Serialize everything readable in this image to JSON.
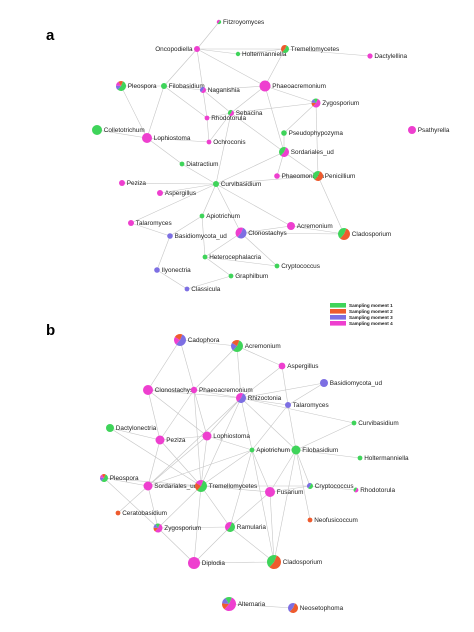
{
  "colors": {
    "m1": "#3fd45a",
    "m2": "#ee5b2e",
    "m3": "#7d6fe3",
    "m4": "#ee3fcf"
  },
  "legend": [
    {
      "key": "m1",
      "label": "Sampling moment 1"
    },
    {
      "key": "m2",
      "label": "Sampling moment 2"
    },
    {
      "key": "m3",
      "label": "Sampling moment 3"
    },
    {
      "key": "m4",
      "label": "Sampling moment 4"
    }
  ],
  "panels": [
    {
      "id": "a",
      "label": "a",
      "nodes": [
        {
          "id": "fitz",
          "label": "Fitzroyomyces",
          "mix": [
            "m1",
            "m4"
          ]
        },
        {
          "id": "onco",
          "label": "Oncopodiella",
          "mix": [
            "m4"
          ]
        },
        {
          "id": "holt",
          "label": "Holtermanniella",
          "mix": [
            "m1"
          ]
        },
        {
          "id": "trem",
          "label": "Tremellomycetes",
          "mix": [
            "m1",
            "m2"
          ]
        },
        {
          "id": "dact",
          "label": "Dactylellina",
          "mix": [
            "m4"
          ]
        },
        {
          "id": "pleo",
          "label": "Pleospora",
          "mix": [
            "m1",
            "m3",
            "m4",
            "m2"
          ]
        },
        {
          "id": "filo",
          "label": "Filobasidium",
          "mix": [
            "m1"
          ]
        },
        {
          "id": "naga",
          "label": "Naganishia",
          "mix": [
            "m4",
            "m3"
          ]
        },
        {
          "id": "phae",
          "label": "Phaeoacremonium",
          "mix": [
            "m4"
          ]
        },
        {
          "id": "zygo",
          "label": "Zygosporium",
          "mix": [
            "m4",
            "m2",
            "m3",
            "m1"
          ]
        },
        {
          "id": "rhod",
          "label": "Rhodotorula",
          "mix": [
            "m4"
          ]
        },
        {
          "id": "seba",
          "label": "Sebacina",
          "mix": [
            "m4",
            "m1"
          ]
        },
        {
          "id": "coll",
          "label": "Colletotrichum",
          "mix": [
            "m1"
          ]
        },
        {
          "id": "loph",
          "label": "Lophiostoma",
          "mix": [
            "m4"
          ]
        },
        {
          "id": "ochr",
          "label": "Ochroconis",
          "mix": [
            "m4"
          ]
        },
        {
          "id": "pseu",
          "label": "Pseudophypozyma",
          "mix": [
            "m1"
          ]
        },
        {
          "id": "psat",
          "label": "Psathyrella",
          "mix": [
            "m4"
          ]
        },
        {
          "id": "sord",
          "label": "Sordariales_ud",
          "mix": [
            "m4",
            "m1"
          ]
        },
        {
          "id": "diat",
          "label": "Diatractium",
          "mix": [
            "m1"
          ]
        },
        {
          "id": "phaeo",
          "label": "Phaeomoniella",
          "mix": [
            "m4"
          ]
        },
        {
          "id": "peni",
          "label": "Penicillium",
          "mix": [
            "m2",
            "m1"
          ]
        },
        {
          "id": "pezi",
          "label": "Peziza",
          "mix": [
            "m4"
          ]
        },
        {
          "id": "curv",
          "label": "Curvibasidium",
          "mix": [
            "m1"
          ]
        },
        {
          "id": "aspe",
          "label": "Aspergillus",
          "mix": [
            "m4"
          ]
        },
        {
          "id": "apio",
          "label": "Apiotrichum",
          "mix": [
            "m1"
          ]
        },
        {
          "id": "tala",
          "label": "Talaromyces",
          "mix": [
            "m4"
          ]
        },
        {
          "id": "clon",
          "label": "Clonostachys",
          "mix": [
            "m3",
            "m4"
          ]
        },
        {
          "id": "acre",
          "label": "Acremonium",
          "mix": [
            "m4"
          ]
        },
        {
          "id": "clad",
          "label": "Cladosporium",
          "mix": [
            "m2",
            "m1"
          ]
        },
        {
          "id": "basi",
          "label": "Basidiomycota_ud",
          "mix": [
            "m3"
          ]
        },
        {
          "id": "hete",
          "label": "Heterocephalacria",
          "mix": [
            "m1"
          ]
        },
        {
          "id": "ilyo",
          "label": "Ilyonectria",
          "mix": [
            "m3"
          ]
        },
        {
          "id": "cryp",
          "label": "Cryptococcus",
          "mix": [
            "m1"
          ]
        },
        {
          "id": "grap",
          "label": "Graphilbum",
          "mix": [
            "m1"
          ]
        },
        {
          "id": "clas",
          "label": "Classicula",
          "mix": [
            "m3"
          ]
        }
      ],
      "edges": [
        [
          "fitz",
          "onco"
        ],
        [
          "onco",
          "holt"
        ],
        [
          "onco",
          "trem"
        ],
        [
          "holt",
          "trem"
        ],
        [
          "onco",
          "naga"
        ],
        [
          "onco",
          "filo"
        ],
        [
          "onco",
          "phae"
        ],
        [
          "filo",
          "naga"
        ],
        [
          "filo",
          "pleo"
        ],
        [
          "filo",
          "rhod"
        ],
        [
          "filo",
          "loph"
        ],
        [
          "naga",
          "rhod"
        ],
        [
          "naga",
          "seba"
        ],
        [
          "naga",
          "phae"
        ],
        [
          "phae",
          "seba"
        ],
        [
          "phae",
          "zygo"
        ],
        [
          "trem",
          "phae"
        ],
        [
          "trem",
          "dact"
        ],
        [
          "zygo",
          "pseu"
        ],
        [
          "zygo",
          "seba"
        ],
        [
          "seba",
          "rhod"
        ],
        [
          "seba",
          "ochr"
        ],
        [
          "seba",
          "sord"
        ],
        [
          "rhod",
          "ochr"
        ],
        [
          "loph",
          "ochr"
        ],
        [
          "loph",
          "coll"
        ],
        [
          "loph",
          "diat"
        ],
        [
          "pseu",
          "sord"
        ],
        [
          "sord",
          "phaeo"
        ],
        [
          "sord",
          "curv"
        ],
        [
          "sord",
          "peni"
        ],
        [
          "diat",
          "curv"
        ],
        [
          "curv",
          "aspe"
        ],
        [
          "curv",
          "pezi"
        ],
        [
          "curv",
          "apio"
        ],
        [
          "curv",
          "peni"
        ],
        [
          "curv",
          "clon"
        ],
        [
          "curv",
          "acre"
        ],
        [
          "curv",
          "tala"
        ],
        [
          "phaeo",
          "peni"
        ],
        [
          "peni",
          "clad"
        ],
        [
          "acre",
          "clad"
        ],
        [
          "clon",
          "acre"
        ],
        [
          "clon",
          "clad"
        ],
        [
          "apio",
          "basi"
        ],
        [
          "apio",
          "hete"
        ],
        [
          "basi",
          "tala"
        ],
        [
          "basi",
          "ilyo"
        ],
        [
          "hete",
          "cryp"
        ],
        [
          "hete",
          "grap"
        ],
        [
          "ilyo",
          "clas"
        ],
        [
          "grap",
          "clas"
        ],
        [
          "clon",
          "hete"
        ],
        [
          "clon",
          "cryp"
        ],
        [
          "seba",
          "curv"
        ],
        [
          "phae",
          "sord"
        ],
        [
          "zygo",
          "peni"
        ],
        [
          "pleo",
          "loph"
        ]
      ]
    },
    {
      "id": "b",
      "label": "b",
      "nodes": [
        {
          "id": "cado",
          "label": "Cadophora",
          "mix": [
            "m3",
            "m4",
            "m2"
          ]
        },
        {
          "id": "acre",
          "label": "Acremonium",
          "mix": [
            "m1",
            "m3",
            "m2"
          ]
        },
        {
          "id": "aspe",
          "label": "Aspergillus",
          "mix": [
            "m4"
          ]
        },
        {
          "id": "clon",
          "label": "Clonostachys",
          "mix": [
            "m4"
          ]
        },
        {
          "id": "phae",
          "label": "Phaeoacremonium",
          "mix": [
            "m4"
          ]
        },
        {
          "id": "basi",
          "label": "Basidiomycota_ud",
          "mix": [
            "m3"
          ]
        },
        {
          "id": "rhiz",
          "label": "Rhizoctonia",
          "mix": [
            "m3",
            "m4"
          ]
        },
        {
          "id": "tala",
          "label": "Talaromyces",
          "mix": [
            "m3"
          ]
        },
        {
          "id": "dact",
          "label": "Dactylonectria",
          "mix": [
            "m1"
          ]
        },
        {
          "id": "curv",
          "label": "Curvibasidium",
          "mix": [
            "m1"
          ]
        },
        {
          "id": "peze",
          "label": "Peziza",
          "mix": [
            "m4"
          ]
        },
        {
          "id": "loph",
          "label": "Lophiostoma",
          "mix": [
            "m4"
          ]
        },
        {
          "id": "apio",
          "label": "Apiotrichum",
          "mix": [
            "m1"
          ]
        },
        {
          "id": "filo",
          "label": "Filobasidium",
          "mix": [
            "m1"
          ]
        },
        {
          "id": "holt",
          "label": "Holtermanniella",
          "mix": [
            "m1"
          ]
        },
        {
          "id": "pleo",
          "label": "Pleospora",
          "mix": [
            "m1",
            "m3",
            "m4",
            "m2"
          ]
        },
        {
          "id": "sord",
          "label": "Sordariales_ud",
          "mix": [
            "m4"
          ]
        },
        {
          "id": "trem",
          "label": "Tremellomycetes",
          "mix": [
            "m1",
            "m2",
            "m4"
          ]
        },
        {
          "id": "fusa",
          "label": "Fusarium",
          "mix": [
            "m4"
          ]
        },
        {
          "id": "cryp",
          "label": "Cryptococcus",
          "mix": [
            "m1",
            "m3"
          ]
        },
        {
          "id": "rhod",
          "label": "Rhodotorula",
          "mix": [
            "m4",
            "m1"
          ]
        },
        {
          "id": "cera",
          "label": "Ceratobasidium",
          "mix": [
            "m2"
          ]
        },
        {
          "id": "zygo",
          "label": "Zygosporium",
          "mix": [
            "m4",
            "m2",
            "m3",
            "m1"
          ]
        },
        {
          "id": "ramu",
          "label": "Ramularia",
          "mix": [
            "m1",
            "m4"
          ]
        },
        {
          "id": "neof",
          "label": "Neofusicoccum",
          "mix": [
            "m2"
          ]
        },
        {
          "id": "dipl",
          "label": "Diplodia",
          "mix": [
            "m4"
          ]
        },
        {
          "id": "clad",
          "label": "Cladosporium",
          "mix": [
            "m2",
            "m1"
          ]
        },
        {
          "id": "alte",
          "label": "Alternaria",
          "mix": [
            "m4",
            "m2",
            "m3",
            "m1"
          ]
        },
        {
          "id": "neos",
          "label": "Neosetophoma",
          "mix": [
            "m2",
            "m3"
          ]
        }
      ],
      "edges": [
        [
          "cado",
          "acre"
        ],
        [
          "cado",
          "phae"
        ],
        [
          "cado",
          "clon"
        ],
        [
          "acre",
          "rhiz"
        ],
        [
          "acre",
          "phae"
        ],
        [
          "acre",
          "aspe"
        ],
        [
          "aspe",
          "rhiz"
        ],
        [
          "aspe",
          "tala"
        ],
        [
          "clon",
          "phae"
        ],
        [
          "clon",
          "rhiz"
        ],
        [
          "clon",
          "peze"
        ],
        [
          "clon",
          "loph"
        ],
        [
          "phae",
          "rhiz"
        ],
        [
          "phae",
          "peze"
        ],
        [
          "phae",
          "loph"
        ],
        [
          "phae",
          "trem"
        ],
        [
          "rhiz",
          "tala"
        ],
        [
          "rhiz",
          "basi"
        ],
        [
          "rhiz",
          "loph"
        ],
        [
          "rhiz",
          "apio"
        ],
        [
          "rhiz",
          "filo"
        ],
        [
          "rhiz",
          "sord"
        ],
        [
          "rhiz",
          "trem"
        ],
        [
          "rhiz",
          "curv"
        ],
        [
          "tala",
          "basi"
        ],
        [
          "tala",
          "filo"
        ],
        [
          "tala",
          "apio"
        ],
        [
          "dact",
          "peze"
        ],
        [
          "dact",
          "trem"
        ],
        [
          "peze",
          "loph"
        ],
        [
          "peze",
          "sord"
        ],
        [
          "peze",
          "trem"
        ],
        [
          "loph",
          "trem"
        ],
        [
          "loph",
          "apio"
        ],
        [
          "loph",
          "sord"
        ],
        [
          "apio",
          "filo"
        ],
        [
          "apio",
          "trem"
        ],
        [
          "apio",
          "fusa"
        ],
        [
          "apio",
          "ramu"
        ],
        [
          "apio",
          "sord"
        ],
        [
          "filo",
          "curv"
        ],
        [
          "filo",
          "holt"
        ],
        [
          "filo",
          "fusa"
        ],
        [
          "filo",
          "cryp"
        ],
        [
          "filo",
          "clad"
        ],
        [
          "filo",
          "neof"
        ],
        [
          "cryp",
          "rhod"
        ],
        [
          "pleo",
          "sord"
        ],
        [
          "pleo",
          "trem"
        ],
        [
          "pleo",
          "zygo"
        ],
        [
          "sord",
          "trem"
        ],
        [
          "sord",
          "cera"
        ],
        [
          "sord",
          "zygo"
        ],
        [
          "trem",
          "zygo"
        ],
        [
          "trem",
          "ramu"
        ],
        [
          "trem",
          "dipl"
        ],
        [
          "trem",
          "fusa"
        ],
        [
          "trem",
          "cryp"
        ],
        [
          "fusa",
          "ramu"
        ],
        [
          "fusa",
          "clad"
        ],
        [
          "zygo",
          "ramu"
        ],
        [
          "zygo",
          "dipl"
        ],
        [
          "ramu",
          "dipl"
        ],
        [
          "ramu",
          "clad"
        ],
        [
          "dipl",
          "clad"
        ],
        [
          "fusa",
          "cryp"
        ],
        [
          "apio",
          "clad"
        ],
        [
          "alte",
          "neos"
        ]
      ]
    }
  ]
}
